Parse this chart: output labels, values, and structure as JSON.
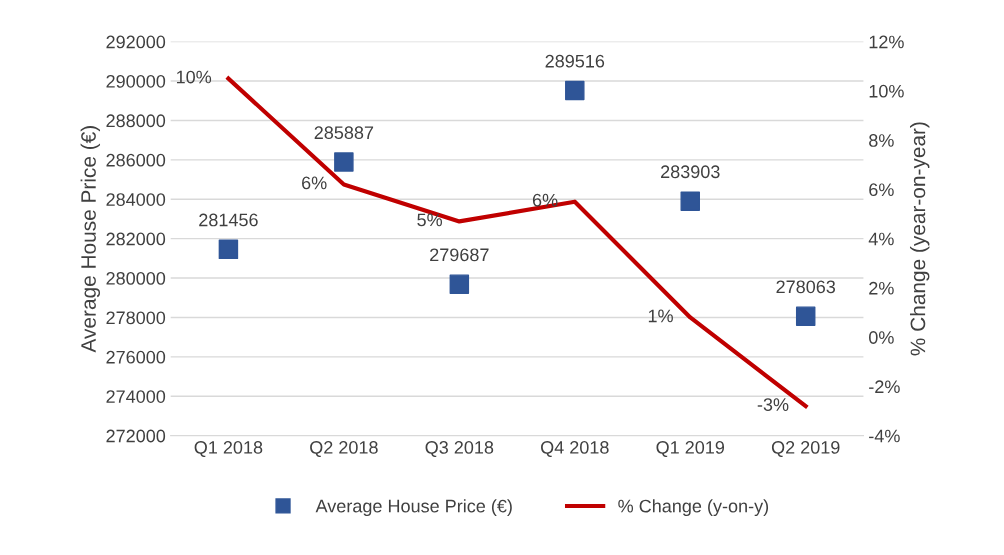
{
  "chart_data": {
    "type": "scatter",
    "ylabel": "Average House Price (€)",
    "y2label": "% Change (year-on-year)",
    "categories": [
      "Q1 2018",
      "Q2 2018",
      "Q3 2018",
      "Q4 2018",
      "Q1 2019",
      "Q2 2019"
    ],
    "series": [
      {
        "name": "Average House Price (€)",
        "color": "#2f5597",
        "marker": "square",
        "values": [
          281456,
          285887,
          279687,
          289516,
          283903,
          278063
        ],
        "data_labels": true
      },
      {
        "name": "% Change (y-on-y)",
        "type": "line",
        "axis": "y2",
        "color": "#c00000",
        "marker": "none",
        "line_style": "solid",
        "values": [
          10.5,
          6.2,
          4.7,
          5.5,
          0.8,
          -2.8
        ],
        "value_labels": [
          "10%",
          "6%",
          "5%",
          "6%",
          "1%",
          "-3%"
        ]
      }
    ],
    "ylim": [
      272000,
      292000
    ],
    "yticks": [
      272000,
      274000,
      276000,
      278000,
      280000,
      282000,
      284000,
      286000,
      288000,
      290000,
      292000
    ],
    "y2lim": [
      -4,
      12
    ],
    "y2ticks": [
      {
        "value": -4,
        "label": "-4%"
      },
      {
        "value": -2,
        "label": "-2%"
      },
      {
        "value": 0,
        "label": "0%"
      },
      {
        "value": 2,
        "label": "2%"
      },
      {
        "value": 4,
        "label": "4%"
      },
      {
        "value": 6,
        "label": "6%"
      },
      {
        "value": 8,
        "label": "8%"
      },
      {
        "value": 10,
        "label": "10%"
      },
      {
        "value": 12,
        "label": "12%"
      }
    ],
    "grid": "y",
    "legend": "bottom"
  }
}
